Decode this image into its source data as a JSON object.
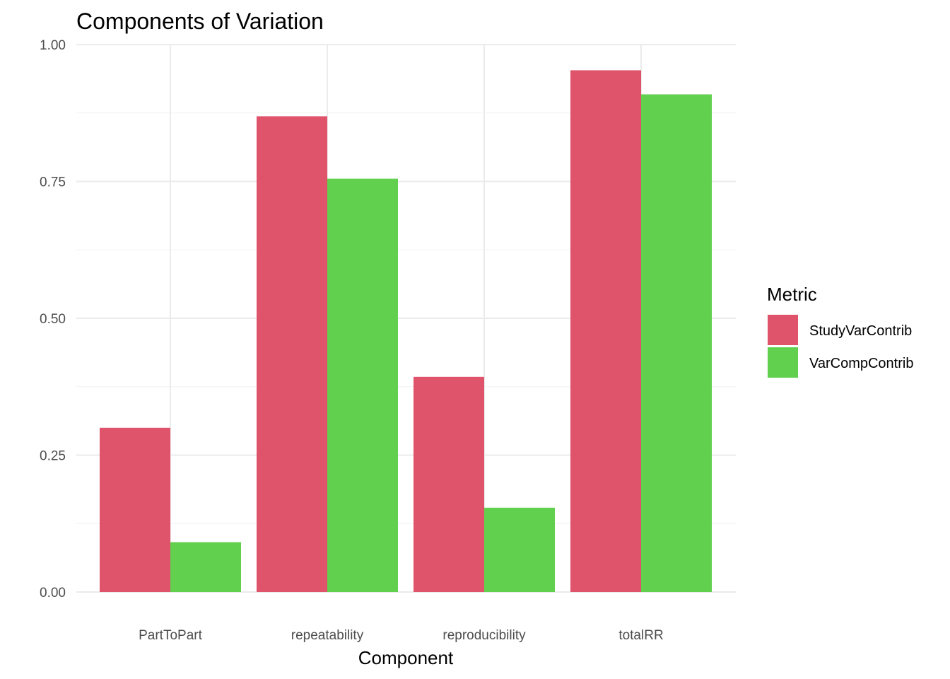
{
  "chart_data": {
    "type": "bar",
    "title": "Components of Variation",
    "xlabel": "Component",
    "ylabel": "",
    "categories": [
      "PartToPart",
      "repeatability",
      "reproducibility",
      "totalRR"
    ],
    "series": [
      {
        "name": "StudyVarContrib",
        "values": [
          0.3,
          0.869,
          0.393,
          0.953
        ],
        "color": "#DF536B"
      },
      {
        "name": "VarCompContrib",
        "values": [
          0.091,
          0.755,
          0.154,
          0.909
        ],
        "color": "#61D04F"
      }
    ],
    "ylim": [
      0,
      1
    ],
    "yticks": [
      0.0,
      0.25,
      0.5,
      0.75,
      1.0
    ],
    "ytick_labels": [
      "0.00",
      "0.25",
      "0.50",
      "0.75",
      "1.00"
    ],
    "grid": true,
    "legend": {
      "title": "Metric",
      "position": "right"
    }
  }
}
